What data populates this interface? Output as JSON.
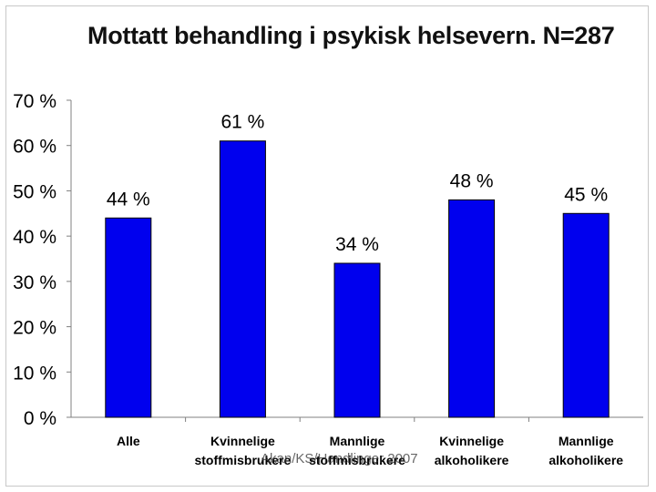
{
  "slide": {
    "title": "Mottatt behandling i psykisk helsevern. N=287",
    "footer": "Akan/KS/Handlinger 2007"
  },
  "colors": {
    "bar": "#0000ee",
    "bar_outline": "#000000",
    "axis": "#808080",
    "text": "#000000"
  },
  "chart_data": {
    "type": "bar",
    "title": "Mottatt behandling i psykisk helsevern. N=287",
    "categories": [
      [
        "Alle"
      ],
      [
        "Kvinnelige",
        "stoffmisbrukere"
      ],
      [
        "Mannlige",
        "stoffmisbrukere"
      ],
      [
        "Kvinnelige",
        "alkoholikere"
      ],
      [
        "Mannlige",
        "alkoholikere"
      ]
    ],
    "values": [
      44,
      61,
      34,
      48,
      45
    ],
    "data_labels": [
      "44 %",
      "61 %",
      "34 %",
      "48 %",
      "45 %"
    ],
    "y_ticks": [
      "0 %",
      "10 %",
      "20 %",
      "30 %",
      "40 %",
      "50 %",
      "60 %",
      "70 %"
    ],
    "ylim": [
      0,
      70
    ],
    "grid": false,
    "legend": "none",
    "xlabel": "",
    "ylabel": ""
  }
}
